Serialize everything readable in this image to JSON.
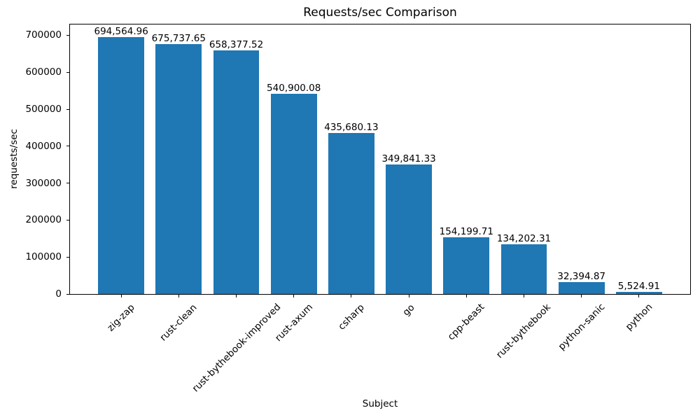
{
  "chart_data": {
    "type": "bar",
    "title": "Requests/sec Comparison",
    "xlabel": "Subject",
    "ylabel": "requests/sec",
    "categories": [
      "zig-zap",
      "rust-clean",
      "rust-bythebook-improved",
      "rust-axum",
      "csharp",
      "go",
      "cpp-beast",
      "rust-bythebook",
      "python-sanic",
      "python"
    ],
    "values": [
      694564.96,
      675737.65,
      658377.52,
      540900.08,
      435680.13,
      349841.33,
      154199.71,
      134202.31,
      32394.87,
      5524.91
    ],
    "value_labels": [
      "694,564.96",
      "675,737.65",
      "658,377.52",
      "540,900.08",
      "435,680.13",
      "349,841.33",
      "154,199.71",
      "134,202.31",
      "32,394.87",
      "5,524.91"
    ],
    "yticks": [
      0,
      100000,
      200000,
      300000,
      400000,
      500000,
      600000,
      700000
    ],
    "ylim": [
      0,
      729293
    ],
    "xlim": [
      -0.89,
      9.89
    ],
    "bar_width_units": 0.8,
    "bar_color": "#1f77b4",
    "text_color": "#000000",
    "background_color": "#ffffff",
    "grid": false,
    "xtick_rotation_deg": 45
  }
}
